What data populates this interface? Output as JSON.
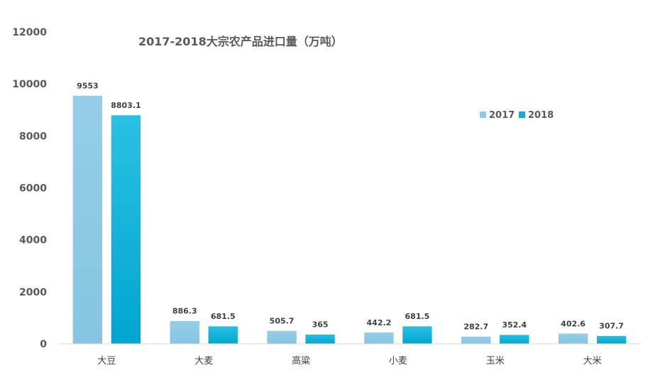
{
  "chart_data": {
    "type": "bar",
    "title": "2017-2018大宗农产品进口量（万吨）",
    "categories": [
      "大豆",
      "大麦",
      "高粱",
      "小麦",
      "玉米",
      "大米"
    ],
    "series": [
      {
        "name": "2017",
        "values": [
          9553,
          886.3,
          505.7,
          442.2,
          282.7,
          402.6
        ],
        "labels": [
          "9553",
          "886.3",
          "505.7",
          "442.2",
          "282.7",
          "402.6"
        ],
        "color": "#8ecae6"
      },
      {
        "name": "2018",
        "values": [
          8803.1,
          681.5,
          365,
          681.5,
          352.4,
          307.7
        ],
        "labels": [
          "8803.1",
          "681.5",
          "365",
          "681.5",
          "352.4",
          "307.7"
        ],
        "color": "#00b0d8"
      }
    ],
    "ylim": [
      0,
      12000
    ],
    "yticks": [
      0,
      2000,
      4000,
      6000,
      8000,
      10000,
      12000
    ],
    "ytick_labels": [
      "0",
      "2000",
      "4000",
      "6000",
      "8000",
      "10000",
      "12000"
    ],
    "xlabel": "",
    "ylabel": "",
    "grid": false,
    "legend_position": "top-right"
  }
}
